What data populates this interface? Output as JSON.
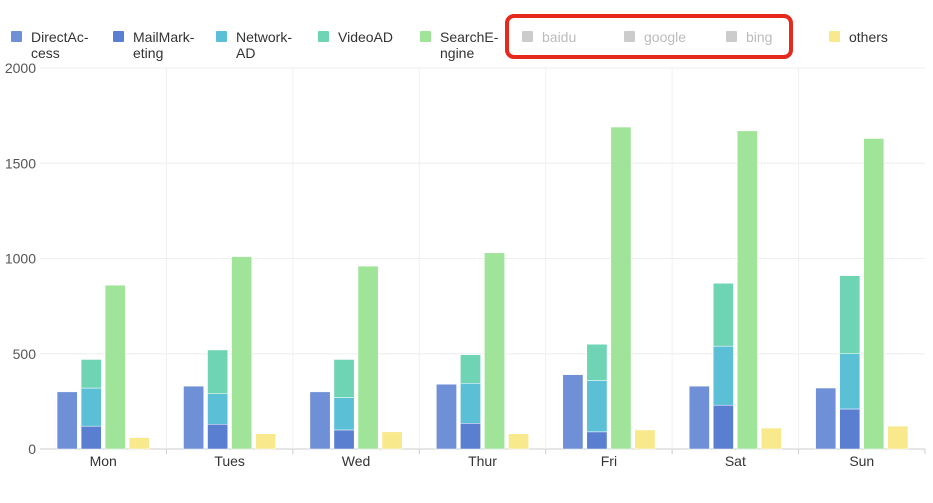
{
  "chart_data": {
    "type": "bar",
    "title": "",
    "xlabel": "",
    "ylabel": "",
    "ylim": [
      0,
      2000
    ],
    "yticks": [
      0,
      500,
      1000,
      1500,
      2000
    ],
    "grid": true,
    "legend_position": "top",
    "categories": [
      "Mon",
      "Tues",
      "Wed",
      "Thur",
      "Fri",
      "Sat",
      "Sun"
    ],
    "legend": [
      {
        "lines": [
          "DirectAc-",
          "cess"
        ],
        "color": "#6f8fd6",
        "active": true
      },
      {
        "lines": [
          "MailMark-",
          "eting"
        ],
        "color": "#5b7fd0",
        "active": true
      },
      {
        "lines": [
          "Network-",
          "AD"
        ],
        "color": "#5bbfd6",
        "active": true
      },
      {
        "lines": [
          "VideoAD"
        ],
        "color": "#6fd4b4",
        "active": true
      },
      {
        "lines": [
          "SearchE-",
          "ngine"
        ],
        "color": "#a0e49a",
        "active": true
      },
      {
        "lines": [
          "baidu"
        ],
        "color": "#cccccc",
        "active": false
      },
      {
        "lines": [
          "google"
        ],
        "color": "#cccccc",
        "active": false
      },
      {
        "lines": [
          "bing"
        ],
        "color": "#cccccc",
        "active": false
      },
      {
        "lines": [
          "others"
        ],
        "color": "#f7e98c",
        "active": true
      }
    ],
    "highlight_box_color": "#e5291c",
    "series": [
      {
        "name": "DirectAccess",
        "color": "#6f8fd6",
        "stack": "direct",
        "values": [
          300,
          330,
          300,
          340,
          390,
          330,
          320
        ]
      },
      {
        "name": "MailMarketing",
        "color": "#5b7fd0",
        "stack": "ad",
        "values": [
          120,
          130,
          100,
          135,
          90,
          230,
          210
        ]
      },
      {
        "name": "NetworkAD",
        "color": "#5bbfd6",
        "stack": "ad",
        "values": [
          200,
          160,
          170,
          210,
          270,
          310,
          290
        ]
      },
      {
        "name": "VideoAD",
        "color": "#6fd4b4",
        "stack": "ad",
        "values": [
          150,
          230,
          200,
          150,
          190,
          330,
          410
        ]
      },
      {
        "name": "SearchEngine",
        "color": "#a0e49a",
        "stack": "search",
        "values": [
          860,
          1010,
          960,
          1030,
          1690,
          1670,
          1630
        ]
      },
      {
        "name": "others",
        "color": "#f7e98c",
        "stack": "others",
        "values": [
          60,
          80,
          90,
          80,
          100,
          110,
          120
        ]
      }
    ]
  }
}
